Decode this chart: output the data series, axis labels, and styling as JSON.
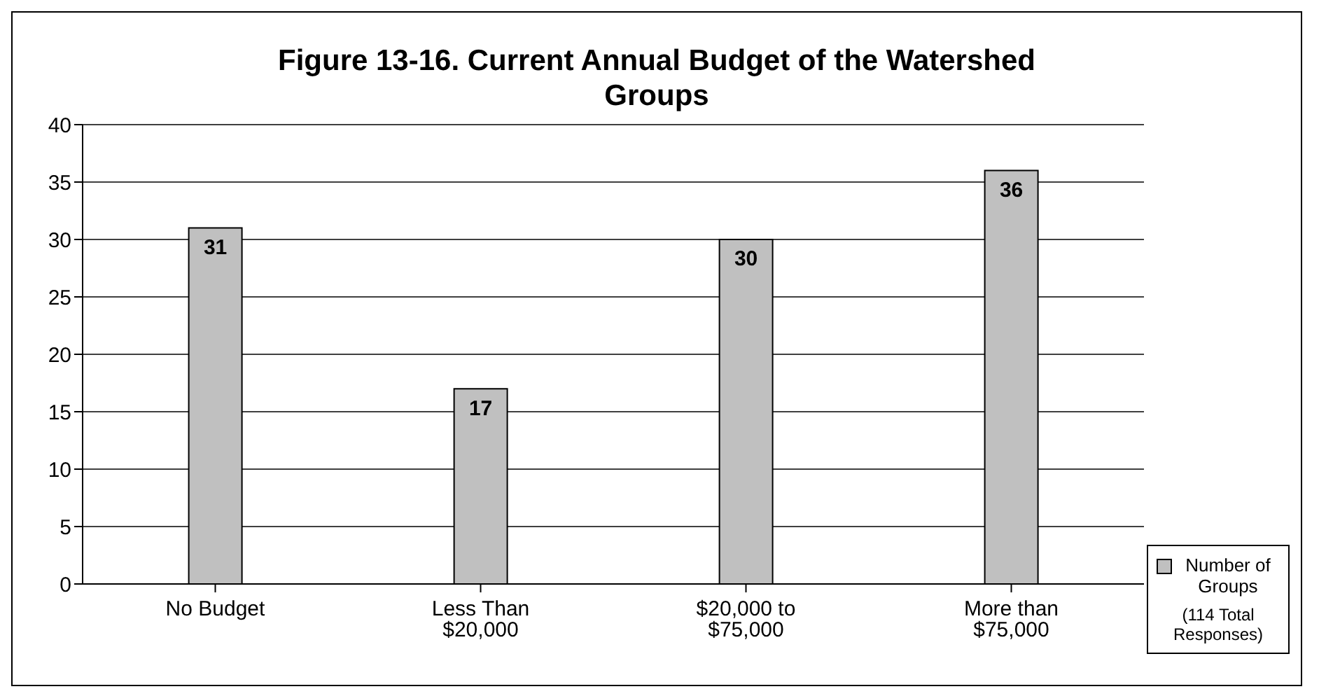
{
  "chart_data": {
    "type": "bar",
    "title": "Figure 13-16.  Current Annual Budget of the Watershed Groups",
    "categories": [
      "No Budget",
      "Less Than $20,000",
      "$20,000 to $75,000",
      "More than $75,000"
    ],
    "series": [
      {
        "name": "Number of Groups",
        "color": "#c0c0c0",
        "values": [
          31,
          17,
          30,
          36
        ]
      }
    ],
    "ylim": [
      0,
      40
    ],
    "yticks": [
      0,
      5,
      10,
      15,
      20,
      25,
      30,
      35,
      40
    ],
    "grid": "y",
    "legend": "bottom right",
    "data_labels": true,
    "annotations": [
      "(114 Total Responses)"
    ]
  }
}
